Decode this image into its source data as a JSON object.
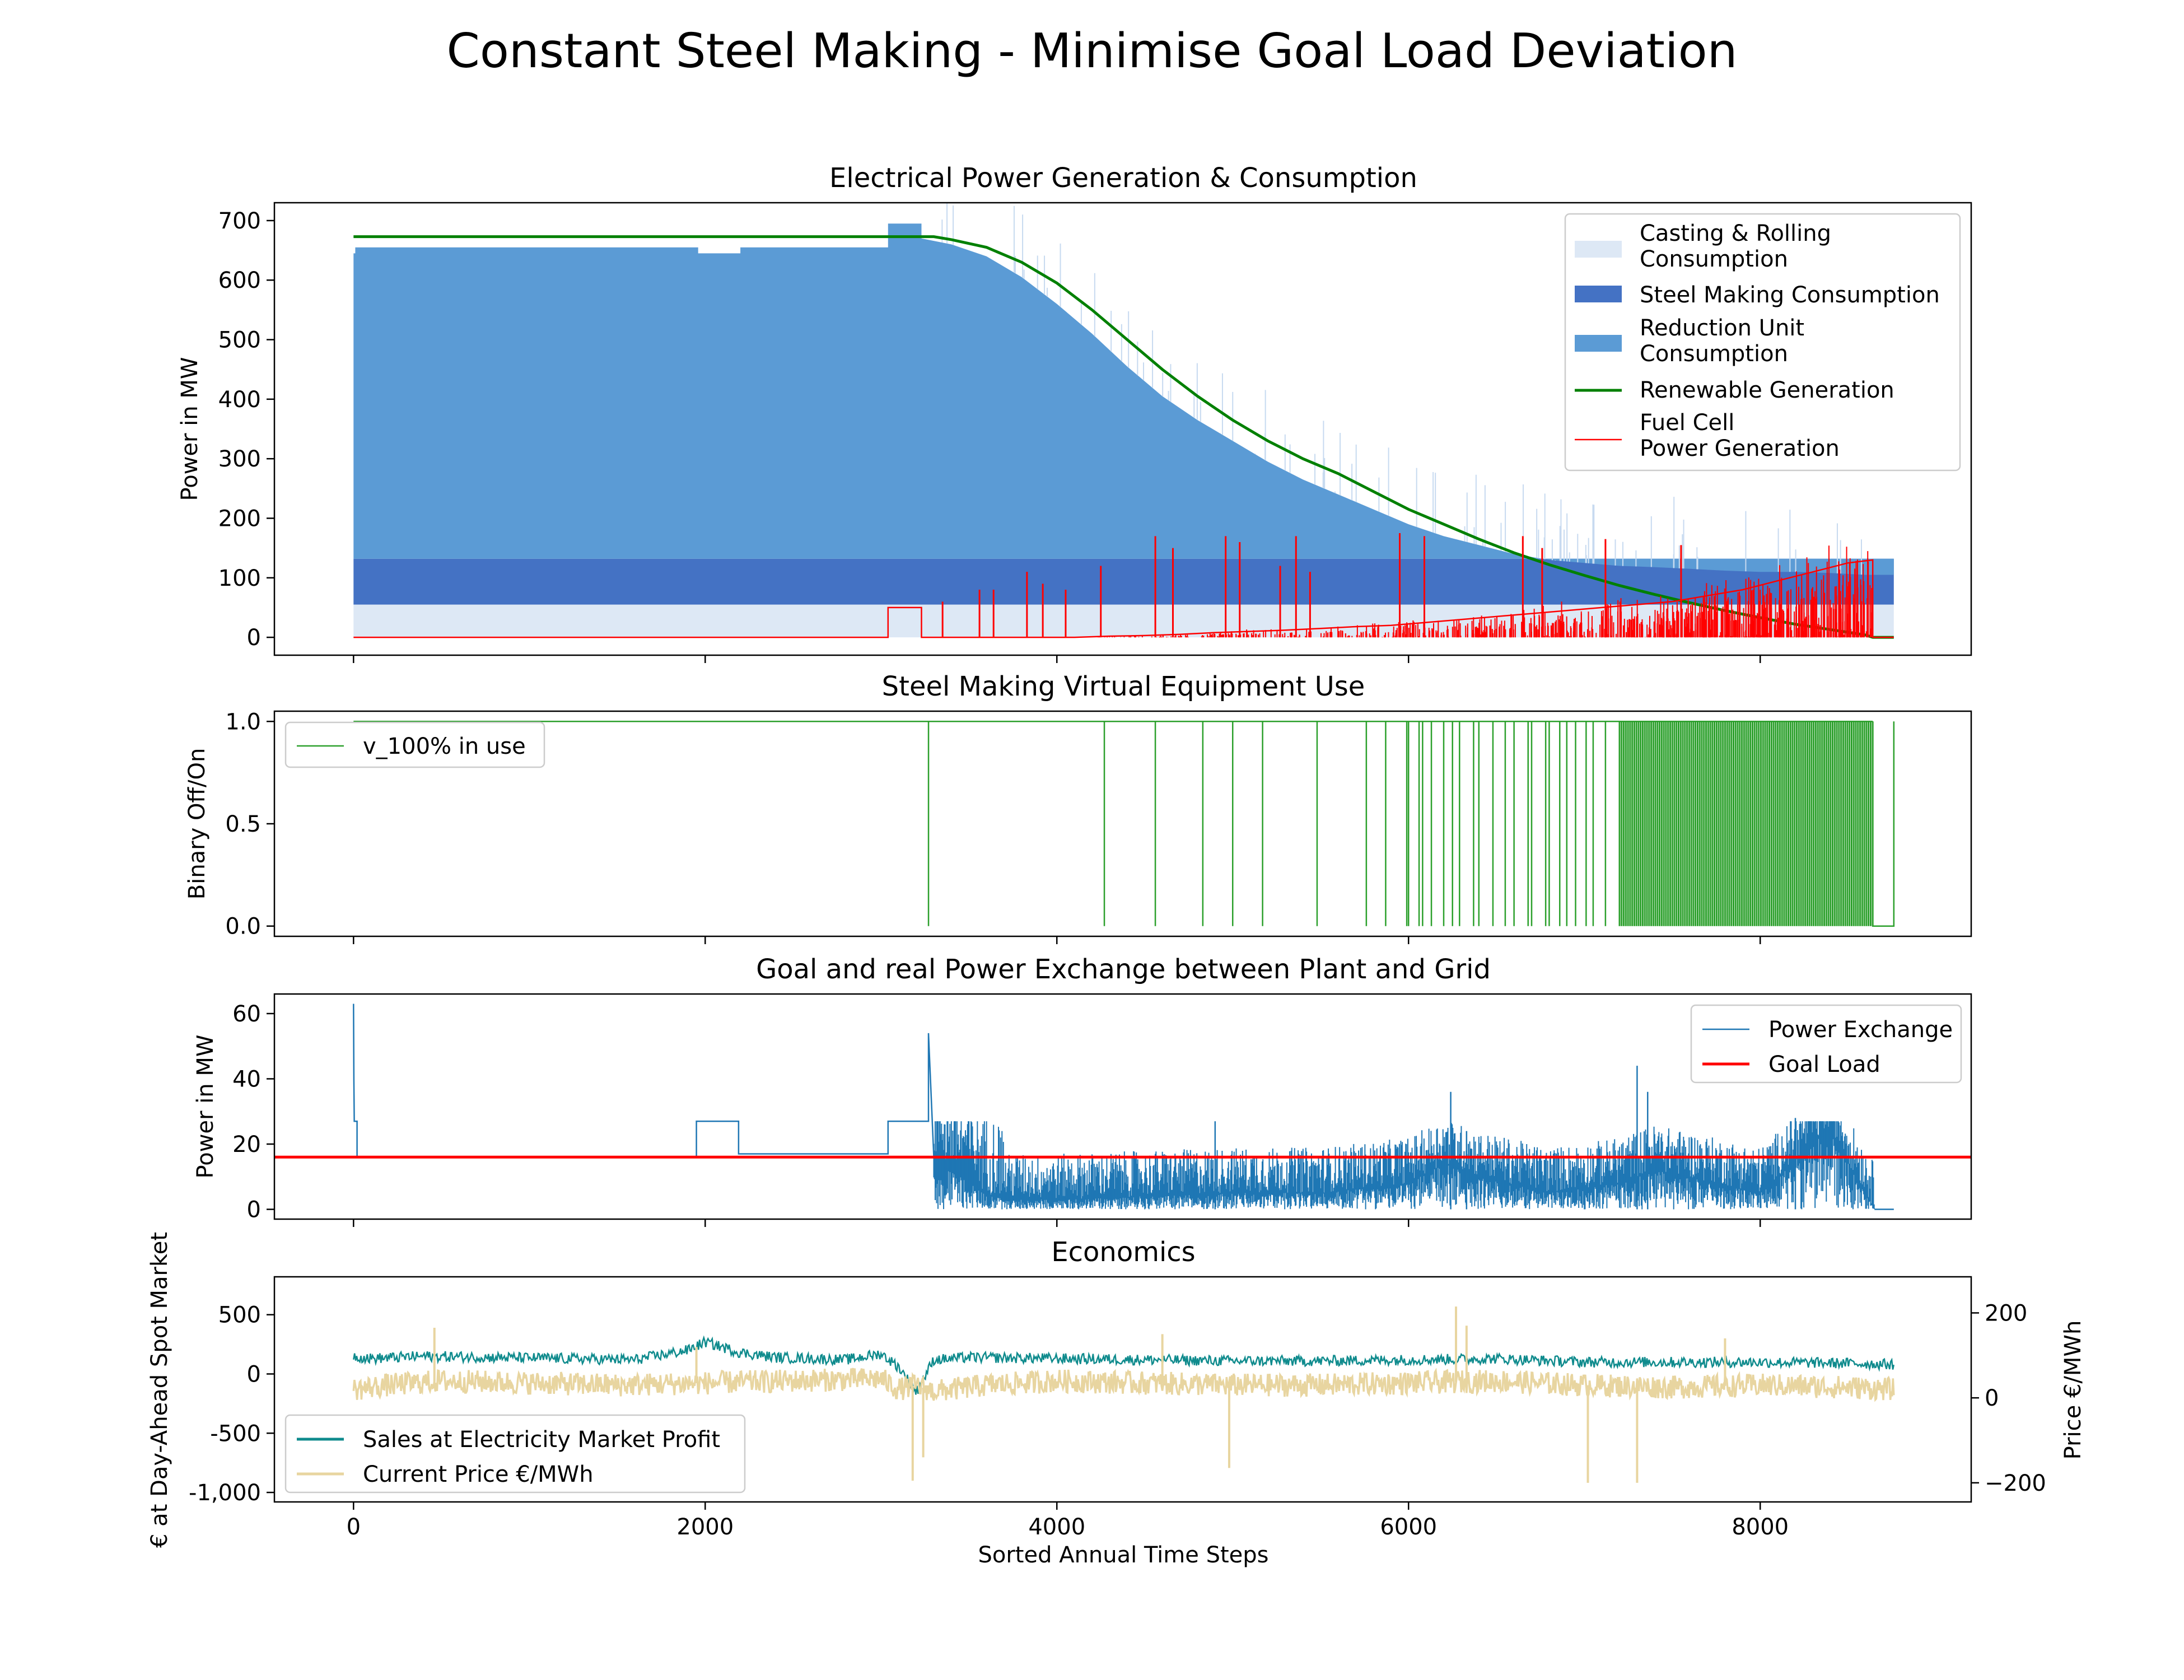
{
  "figure_title": "Constant Steel Making - Minimise Goal Load Deviation",
  "colors": {
    "casting": "#dde8f5",
    "steel": "#4472c4",
    "reduction": "#5b9bd5",
    "renewable": "#008000",
    "fuel_cell": "#ff0000",
    "v100": "#2ca02c",
    "power_exchange": "#1f77b4",
    "goal_load": "#ff0000",
    "sales": "#0f8b8d",
    "price": "#e8d5a0"
  },
  "chart_data": [
    {
      "type": "area",
      "title": "Electrical Power Generation & Consumption",
      "xlabel": "",
      "ylabel": "Power in MW",
      "xlim": [
        -450,
        9200
      ],
      "ylim": [
        -30,
        730
      ],
      "xticks": [
        0,
        2000,
        4000,
        6000,
        8000
      ],
      "yticks": [
        0,
        100,
        200,
        300,
        400,
        500,
        600,
        700
      ],
      "grid": false,
      "legend_position": "top-right",
      "legend": [
        "Casting & Rolling\nConsumption",
        "Steel Making Consumption",
        "Reduction Unit\nConsumption",
        "Renewable Generation",
        "Fuel Cell\nPower Generation"
      ],
      "series": [
        {
          "name": "Casting & Rolling\nConsumption",
          "kind": "area",
          "x": [
            0,
            8760
          ],
          "y0": [
            0,
            0
          ],
          "y1": [
            55,
            55
          ]
        },
        {
          "name": "Steel Making Consumption",
          "kind": "area",
          "x": [
            0,
            8760
          ],
          "y0": [
            55,
            55
          ],
          "y1": [
            132,
            132
          ]
        },
        {
          "name": "Reduction Unit\nConsumption",
          "kind": "area",
          "x": [
            0,
            10,
            10,
            1960,
            1960,
            2200,
            2200,
            3040,
            3040,
            3230,
            3230,
            3400,
            3600,
            3800,
            4000,
            4200,
            4400,
            4600,
            4800,
            5000,
            5200,
            5400,
            5600,
            5800,
            6000,
            6200,
            6400,
            6600,
            6800,
            7000,
            7200,
            7400,
            7600,
            7800,
            8000,
            8200,
            8400,
            8600,
            8760
          ],
          "y0": [
            132,
            132,
            132,
            132,
            132,
            132,
            132,
            132,
            132,
            132,
            132,
            132,
            132,
            132,
            132,
            132,
            132,
            132,
            132,
            132,
            132,
            132,
            132,
            132,
            132,
            132,
            132,
            132,
            132,
            132,
            132,
            132,
            132,
            132,
            132,
            132,
            132,
            132,
            132
          ],
          "y1": [
            645,
            645,
            655,
            655,
            645,
            645,
            655,
            655,
            695,
            695,
            670,
            660,
            640,
            605,
            560,
            510,
            455,
            405,
            365,
            330,
            295,
            265,
            240,
            215,
            190,
            170,
            155,
            140,
            130,
            125,
            120,
            118,
            115,
            112,
            110,
            110,
            108,
            105,
            105
          ]
        },
        {
          "name": "Renewable Generation",
          "kind": "line",
          "x": [
            0,
            3300,
            3400,
            3600,
            3800,
            4000,
            4200,
            4400,
            4600,
            4800,
            5000,
            5200,
            5400,
            5600,
            5800,
            6000,
            6200,
            6400,
            6600,
            6800,
            7000,
            7200,
            7400,
            7600,
            7800,
            8000,
            8200,
            8400,
            8600,
            8640,
            8760
          ],
          "y": [
            673,
            673,
            668,
            655,
            630,
            595,
            550,
            500,
            450,
            405,
            365,
            330,
            300,
            275,
            245,
            215,
            190,
            165,
            142,
            122,
            104,
            87,
            72,
            58,
            45,
            33,
            22,
            13,
            4,
            0,
            0
          ]
        },
        {
          "name": "Fuel Cell\nPower Generation",
          "kind": "line",
          "x": [
            0,
            3040,
            3040,
            3230,
            3230,
            3300,
            3300,
            3500,
            3700,
            3900,
            4100,
            4300,
            4500,
            4700,
            4900,
            5100,
            5300,
            5500,
            5700,
            5900,
            6100,
            6300,
            6500,
            6700,
            6900,
            7100,
            7300,
            7500,
            7700,
            7900,
            8100,
            8300,
            8500,
            8640,
            8640,
            8760
          ],
          "y": [
            0,
            0,
            50,
            50,
            0,
            0,
            0,
            0,
            0,
            0,
            0,
            2,
            3,
            5,
            8,
            10,
            12,
            15,
            18,
            20,
            25,
            30,
            35,
            40,
            45,
            50,
            55,
            60,
            70,
            80,
            95,
            110,
            125,
            130,
            0,
            0
          ]
        }
      ]
    },
    {
      "type": "line",
      "title": "Steel Making Virtual Equipment Use",
      "xlabel": "",
      "ylabel": "Binary Off/On",
      "xlim": [
        -450,
        9200
      ],
      "ylim": [
        -0.05,
        1.05
      ],
      "xticks": [
        0,
        2000,
        4000,
        6000,
        8000
      ],
      "yticks": [
        0.0,
        0.5,
        1.0
      ],
      "ytick_labels": [
        "0.0",
        "0.5",
        "1.0"
      ],
      "grid": false,
      "legend_position": "top-left",
      "legend": [
        "v_100% in use"
      ],
      "series": [
        {
          "name": "v_100% in use",
          "baseline": 1,
          "off_steps": [
            3270,
            4270,
            4560,
            4830,
            5000,
            5170,
            5480,
            5760,
            5870,
            5990,
            6000,
            6060,
            6080,
            6130,
            6200,
            6250,
            6290,
            6370,
            6400,
            6480,
            6550,
            6600,
            6680,
            6700,
            6780,
            6800,
            6860,
            6900,
            6950,
            7010,
            7050,
            7120
          ],
          "dense_off_range": [
            7200,
            8640
          ],
          "final_off_range": [
            8640,
            8760
          ]
        }
      ]
    },
    {
      "type": "line",
      "title": "Goal and real Power Exchange between Plant and Grid",
      "xlabel": "",
      "ylabel": "Power in MW",
      "xlim": [
        -450,
        9200
      ],
      "ylim": [
        -3,
        66
      ],
      "xticks": [
        0,
        2000,
        4000,
        6000,
        8000
      ],
      "yticks": [
        0,
        20,
        40,
        60
      ],
      "grid": false,
      "legend_position": "top-right",
      "legend": [
        "Power Exchange",
        "Goal Load"
      ],
      "series": [
        {
          "name": "Power Exchange",
          "x": [
            0,
            2,
            4,
            10,
            20,
            20,
            1950,
            1950,
            2190,
            2190,
            3040,
            3040,
            3270,
            3270,
            3300,
            3400,
            3500,
            3600,
            3700,
            4000,
            4500,
            5000,
            5500,
            6000,
            6200,
            6400,
            6800,
            7200,
            7400,
            8000,
            8200,
            8400,
            8500,
            8600,
            8650,
            8760
          ],
          "y": [
            63,
            40,
            27,
            27,
            27,
            16,
            16,
            27,
            27,
            17,
            17,
            27,
            27,
            54,
            16,
            12,
            8,
            5,
            3,
            3,
            4,
            5,
            5,
            8,
            14,
            10,
            5,
            8,
            12,
            5,
            15,
            25,
            14,
            5,
            0,
            0
          ],
          "spikes": [
            [
              4900,
              27
            ],
            [
              6240,
              36
            ],
            [
              6330,
              24
            ],
            [
              7300,
              44
            ],
            [
              7360,
              36
            ],
            [
              8200,
              28
            ]
          ]
        },
        {
          "name": "Goal Load",
          "y": 16
        }
      ]
    },
    {
      "type": "line",
      "title": "Economics",
      "xlabel": "Sorted Annual Time Steps",
      "ylabel": "€ at Day-Ahead Spot Market",
      "ylabel_right": "Price €/MWh",
      "xlim": [
        -450,
        9200
      ],
      "ylim": [
        -1080,
        820
      ],
      "ylim_right": [
        -245,
        285
      ],
      "xticks": [
        0,
        2000,
        4000,
        6000,
        8000
      ],
      "yticks": [
        -1000,
        -500,
        0,
        500
      ],
      "ytick_labels": [
        "-1,000",
        "-500",
        "0",
        "500"
      ],
      "yticks_right": [
        -200,
        0,
        200
      ],
      "yticks_right_labels": [
        "−200",
        "0",
        "200"
      ],
      "grid": false,
      "legend_position": "bottom-left",
      "legend": [
        "Sales at Electricity Market Profit",
        "Current Price €/MWh"
      ],
      "series": [
        {
          "name": "Sales at Electricity Market Profit",
          "axis": "left",
          "x": [
            0,
            100,
            400,
            800,
            1200,
            1600,
            1900,
            2000,
            2200,
            2400,
            2800,
            3000,
            3100,
            3200,
            3300,
            3500,
            4000,
            4500,
            5000,
            5500,
            6000,
            6500,
            7000,
            7500,
            8000,
            8500,
            8760
          ],
          "y": [
            150,
            130,
            150,
            140,
            130,
            120,
            200,
            270,
            180,
            140,
            120,
            170,
            60,
            -150,
            120,
            140,
            130,
            120,
            110,
            110,
            120,
            130,
            100,
            100,
            100,
            90,
            80
          ]
        },
        {
          "name": "Current Price €/MWh",
          "axis": "right",
          "x": [
            0,
            200,
            500,
            1000,
            1500,
            2000,
            2500,
            3000,
            3100,
            3200,
            3300,
            3600,
            4000,
            4500,
            5000,
            5500,
            6000,
            6500,
            7000,
            7500,
            8000,
            8500,
            8760
          ],
          "y": [
            20,
            30,
            40,
            35,
            30,
            35,
            40,
            45,
            20,
            30,
            15,
            30,
            40,
            35,
            30,
            30,
            35,
            40,
            30,
            25,
            30,
            25,
            20
          ],
          "spikes": [
            [
              460,
              165
            ],
            [
              3180,
              -195
            ],
            [
              3240,
              -140
            ],
            [
              4980,
              -165
            ],
            [
              6270,
              215
            ],
            [
              6330,
              170
            ],
            [
              7020,
              -200
            ],
            [
              7300,
              -200
            ],
            [
              4600,
              150
            ],
            [
              1950,
              120
            ],
            [
              7800,
              140
            ]
          ]
        }
      ]
    }
  ]
}
